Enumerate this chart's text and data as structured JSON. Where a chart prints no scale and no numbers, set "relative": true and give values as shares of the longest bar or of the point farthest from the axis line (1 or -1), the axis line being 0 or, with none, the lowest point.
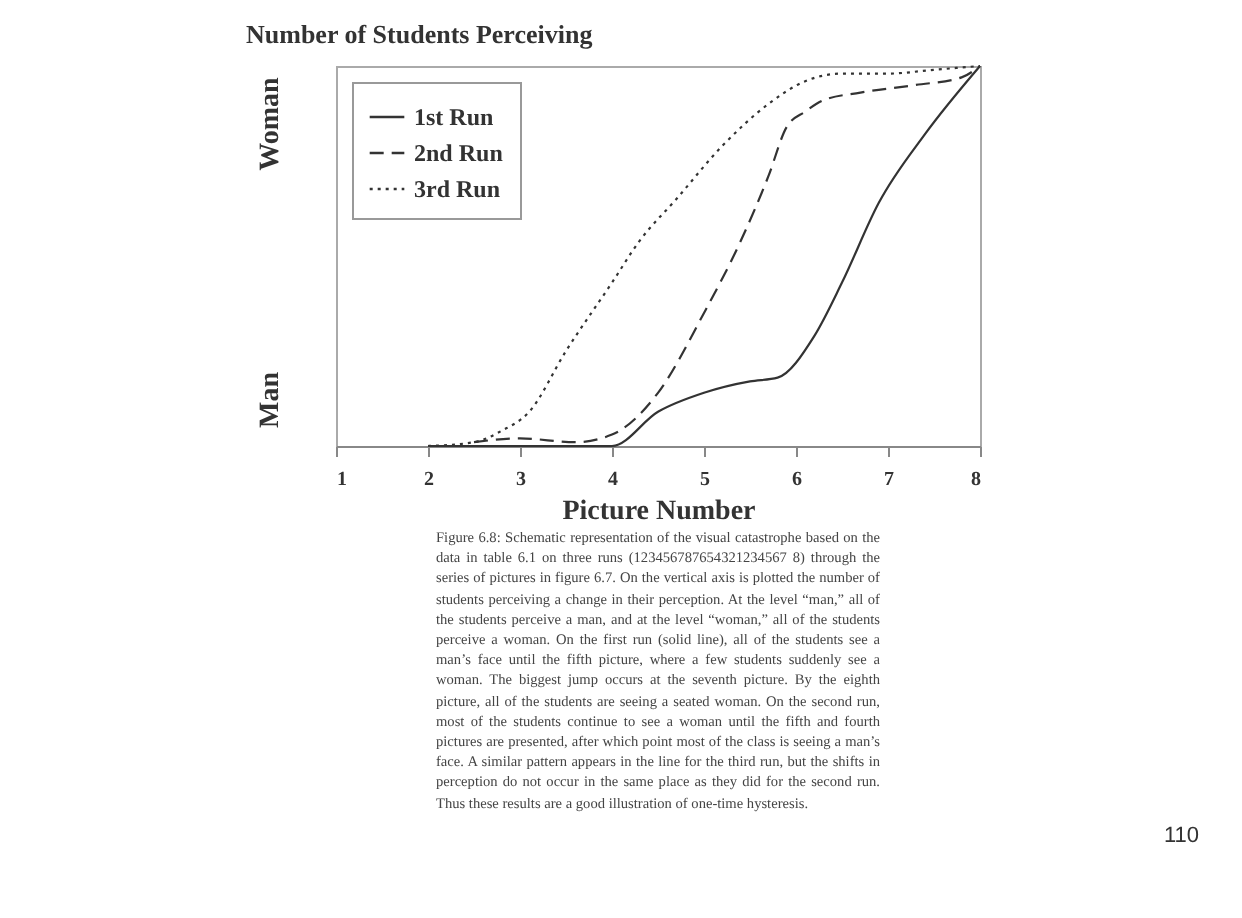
{
  "chart_data": {
    "type": "line",
    "title": "Number of Students Perceiving",
    "xlabel": "Picture Number",
    "xlim": [
      1,
      8
    ],
    "xticks": [
      1,
      2,
      3,
      4,
      5,
      6,
      7,
      8
    ],
    "relative": true,
    "legend": "top left",
    "grid": false,
    "series": [
      {
        "name": "1st Run",
        "color": "#333333",
        "line_style": "solid",
        "x": [
          2,
          3,
          4,
          4.5,
          5,
          5.5,
          5.8,
          6.2,
          6.5,
          6.9,
          7.4,
          8
        ],
        "values": [
          0,
          0,
          0,
          0.09,
          0.14,
          0.17,
          0.18,
          0.29,
          0.43,
          0.64,
          0.82,
          1
        ]
      },
      {
        "name": "2nd Run",
        "color": "#333333",
        "line_style": "dashed",
        "x": [
          2.5,
          3,
          3.6,
          4,
          4.5,
          5,
          5.4,
          5.7,
          5.9,
          6.1,
          6.3,
          6.7,
          7.3,
          7.8,
          8
        ],
        "values": [
          0.01,
          0.02,
          0.01,
          0.03,
          0.14,
          0.35,
          0.54,
          0.71,
          0.84,
          0.88,
          0.91,
          0.93,
          0.95,
          0.97,
          1
        ]
      },
      {
        "name": "3rd Run",
        "color": "#333333",
        "line_style": "dotted",
        "x": [
          2,
          2.5,
          2.8,
          3.1,
          3.5,
          4,
          4.3,
          4.7,
          5.2,
          5.7,
          6.1,
          6.5,
          7,
          7.5,
          8
        ],
        "values": [
          0,
          0.01,
          0.04,
          0.09,
          0.25,
          0.43,
          0.54,
          0.65,
          0.79,
          0.9,
          0.96,
          0.98,
          0.98,
          0.99,
          1
        ]
      }
    ],
    "annotations": [
      "Woman",
      "Man",
      "Figure 6.8: Schematic representation of the visual catastrophe based on the data in table 6.1 on three runs (123456787654321234567 8) through the series of pictures in figure 6.7. On the vertical axis is plotted the number of students perceiving a change in their perception. At the level “man,” all of the students perceive a man, and at the level “woman,” all of the students perceive a woman. On the first run (solid line), all of the students see a man’s face until the fifth picture, where a few students suddenly see a woman. The biggest jump occurs at the seventh picture. By the eighth picture, all of the students are seeing a seated woman. On the second run, most of the students continue to see a woman until the fifth and fourth pictures are presented, after which point most of the class is seeing a man’s face. A similar pattern appears in the line for the third run, but the shifts in perception do not occur in the same place as they did for the second run. Thus these results are a good illustration of one-time hysteresis.",
      "110"
    ]
  }
}
